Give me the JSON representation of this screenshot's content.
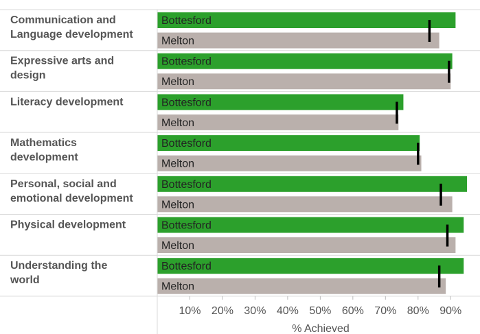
{
  "chart_data": {
    "type": "bar",
    "orientation": "horizontal",
    "categories": [
      [
        "Communication and",
        "Language development"
      ],
      [
        "Expressive arts and",
        "design"
      ],
      [
        "Literacy development"
      ],
      [
        "Mathematics",
        "development"
      ],
      [
        "Personal, social and",
        "emotional development"
      ],
      [
        "Physical development"
      ],
      [
        "Understanding the",
        "world"
      ]
    ],
    "series": [
      {
        "name": "Bottesford",
        "color": "#2ca02c",
        "values": [
          91.5,
          90.5,
          75.5,
          80.5,
          95,
          94,
          94
        ]
      },
      {
        "name": "Melton",
        "color": "#bab0ac",
        "values": [
          86.5,
          90,
          74,
          81,
          90.5,
          91.5,
          88.5
        ]
      }
    ],
    "reference_values": [
      83.5,
      89.5,
      73.5,
      80,
      87,
      89,
      86.5
    ],
    "reference_color": "#000000",
    "xticks": [
      10,
      20,
      30,
      40,
      50,
      60,
      70,
      80,
      90
    ],
    "tick_labels": [
      "10%",
      "20%",
      "30%",
      "40%",
      "50%",
      "60%",
      "70%",
      "80%",
      "90%"
    ],
    "xlim": [
      0,
      99
    ],
    "xlabel": "% Achieved",
    "grid": false,
    "legend": "none"
  }
}
